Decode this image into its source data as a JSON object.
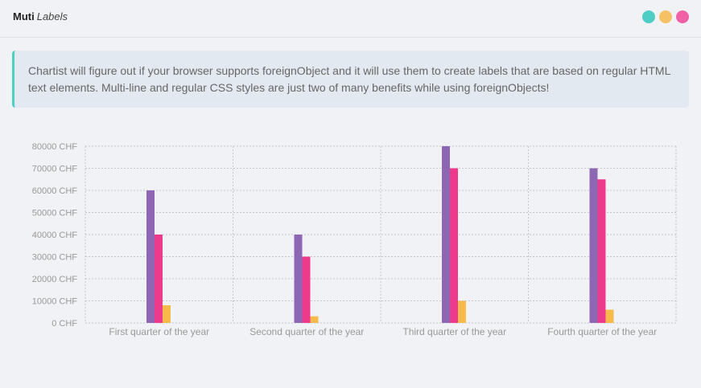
{
  "header": {
    "title_strong": "Muti",
    "title_em": "Labels",
    "dots": [
      {
        "name": "teal-dot",
        "color": "#4ecdc4"
      },
      {
        "name": "yellow-dot",
        "color": "#f6c065"
      },
      {
        "name": "pink-dot",
        "color": "#f062a6"
      }
    ]
  },
  "callout": {
    "text": "Chartist will figure out if your browser supports foreignObject and it will use them to create labels that are based on regular HTML text elements. Multi-line and regular CSS styles are just two of many benefits while using foreignObjects!",
    "accent_color": "#4ecdc4"
  },
  "chart_data": {
    "type": "bar",
    "categories": [
      "First quarter of the year",
      "Second quarter of the year",
      "Third quarter of the year",
      "Fourth quarter of the year"
    ],
    "series": [
      {
        "values": [
          60000,
          40000,
          80000,
          70000
        ],
        "color": "#8e67b4"
      },
      {
        "values": [
          40000,
          30000,
          70000,
          65000
        ],
        "color": "#ee3a8c"
      },
      {
        "values": [
          8000,
          3000,
          10000,
          6000
        ],
        "color": "#f6b94a"
      }
    ],
    "ylim": [
      0,
      80000
    ],
    "yticks": [
      "0 CHF",
      "10000 CHF",
      "20000 CHF",
      "30000 CHF",
      "40000 CHF",
      "50000 CHF",
      "60000 CHF",
      "70000 CHF",
      "80000 CHF"
    ],
    "ytick_values": [
      0,
      10000,
      20000,
      30000,
      40000,
      50000,
      60000,
      70000,
      80000
    ],
    "grid": true
  }
}
